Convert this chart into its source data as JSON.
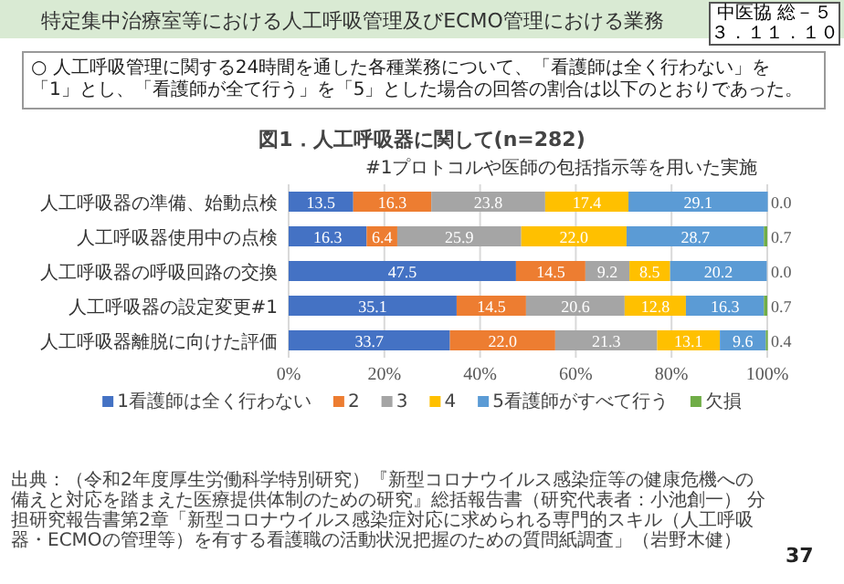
{
  "chart_data": {
    "type": "bar",
    "orientation": "horizontal",
    "stacked": true,
    "title": "特定集中治療室等における人工呼吸管理及びECMO管理における業務",
    "subtitle": "図1．人工呼吸器に関して(n=282)",
    "annotations": [
      "○ 人工呼吸管理に関する24時間を通した各種業務について、「看護師は全く行わない」を「1」とし、「看護師が全て行う」を「5」とした場合の回答の割合は以下のとおりであった。",
      "#1プロトコルや医師の包括指示等を用いた実施",
      "出典：（令和2年度厚生労働科学特別研究）『新型コロナウイルス感染症等の健康危機への備えと対応を踏まえた医療提供体制のための研究』総括報告書（研究代表者：小池創一） 分担研究報告書第2章「新型コロナウイルス感染症対応に求められる専門的スキル（人工呼吸器・ECMOの管理等）を有する看護職の活動状況把握のための質問紙調査」（岩野木健）",
      "37",
      "中医協 総－５",
      "３．１１．１０"
    ],
    "categories": [
      "人工呼吸器の準備、始動点検",
      "人工呼吸器使用中の点検",
      "人工呼吸器の呼吸回路の交換",
      "人工呼吸器の設定変更#1",
      "人工呼吸器離脱に向けた評価"
    ],
    "series": [
      {
        "name": "1看護師は全く行わない",
        "color": "#4472c4",
        "values": [
          13.5,
          16.3,
          47.5,
          35.1,
          33.7
        ],
        "value_labels": [
          "13.5",
          "16.3",
          "47.5",
          "35.1",
          "33.7"
        ]
      },
      {
        "name": "2",
        "color": "#ed7d31",
        "values": [
          16.3,
          6.4,
          14.5,
          14.5,
          22.0
        ],
        "value_labels": [
          "16.3",
          "6.4",
          "14.5",
          "14.5",
          "22.0"
        ]
      },
      {
        "name": "3",
        "color": "#a5a5a5",
        "values": [
          23.8,
          25.9,
          9.2,
          20.6,
          21.3
        ],
        "value_labels": [
          "23.8",
          "25.9",
          "9.2",
          "20.6",
          "21.3"
        ]
      },
      {
        "name": "4",
        "color": "#ffc000",
        "values": [
          17.4,
          22.0,
          8.5,
          12.8,
          13.1
        ],
        "value_labels": [
          "17.4",
          "22.0",
          "8.5",
          "12.8",
          "13.1"
        ]
      },
      {
        "name": "5看護師がすべて行う",
        "color": "#5b9bd5",
        "values": [
          29.1,
          28.7,
          20.2,
          16.3,
          9.6
        ],
        "value_labels": [
          "29.1",
          "28.7",
          "20.2",
          "16.3",
          "9.6"
        ]
      },
      {
        "name": "欠損",
        "color": "#70ad47",
        "values": [
          0.0,
          0.7,
          0.0,
          0.7,
          0.4
        ],
        "value_labels": [
          "0.0",
          "0.7",
          "0.0",
          "0.7",
          "0.4"
        ]
      }
    ],
    "xlim": [
      0,
      100
    ],
    "xticks": [
      {
        "value": 0,
        "label": "0%"
      },
      {
        "value": 20,
        "label": "20%"
      },
      {
        "value": 40,
        "label": "40%"
      },
      {
        "value": 60,
        "label": "60%"
      },
      {
        "value": 80,
        "label": "80%"
      },
      {
        "value": 100,
        "label": "100%"
      }
    ],
    "grid": "x",
    "legend": "bottom"
  }
}
